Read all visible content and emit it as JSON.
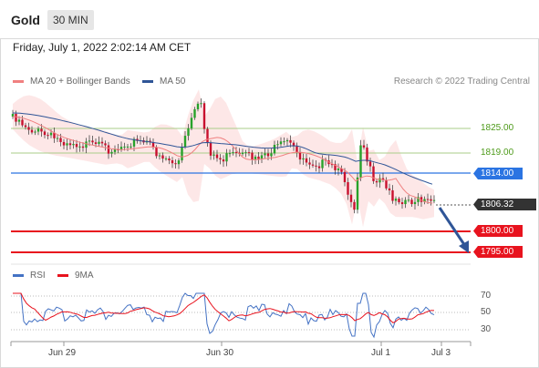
{
  "header": {
    "instrument": "Gold",
    "interval": "30 MIN"
  },
  "timestamp": "Friday, July 1, 2022 2:02:14 AM CET",
  "legend": {
    "ma20": "MA 20 + Bollinger Bands",
    "ma50": "MA 50",
    "credit": "Research © 2022 Trading Central"
  },
  "levels": {
    "l1825": "1825.00",
    "l1819": "1819.00",
    "l1814": "1814.00",
    "current": "1806.32",
    "l1800": "1800.00",
    "l1795": "1795.00"
  },
  "rsi_legend": {
    "rsi": "RSI",
    "ma9": "9MA"
  },
  "rsi_axis": [
    "70",
    "50",
    "30"
  ],
  "x_axis": [
    "Jun 29",
    "Jun 30",
    "Jul 1",
    "Jul 3"
  ],
  "colors": {
    "ma20": "#f08080",
    "ma50": "#2f5597",
    "support": "#e8131e",
    "pivot": "#2b74e2",
    "resistance": "#8ab862",
    "current": "#333333",
    "forecast_arrow": "#2f5597",
    "rsi": "#4472c4",
    "ma9": "#e8131e"
  }
}
